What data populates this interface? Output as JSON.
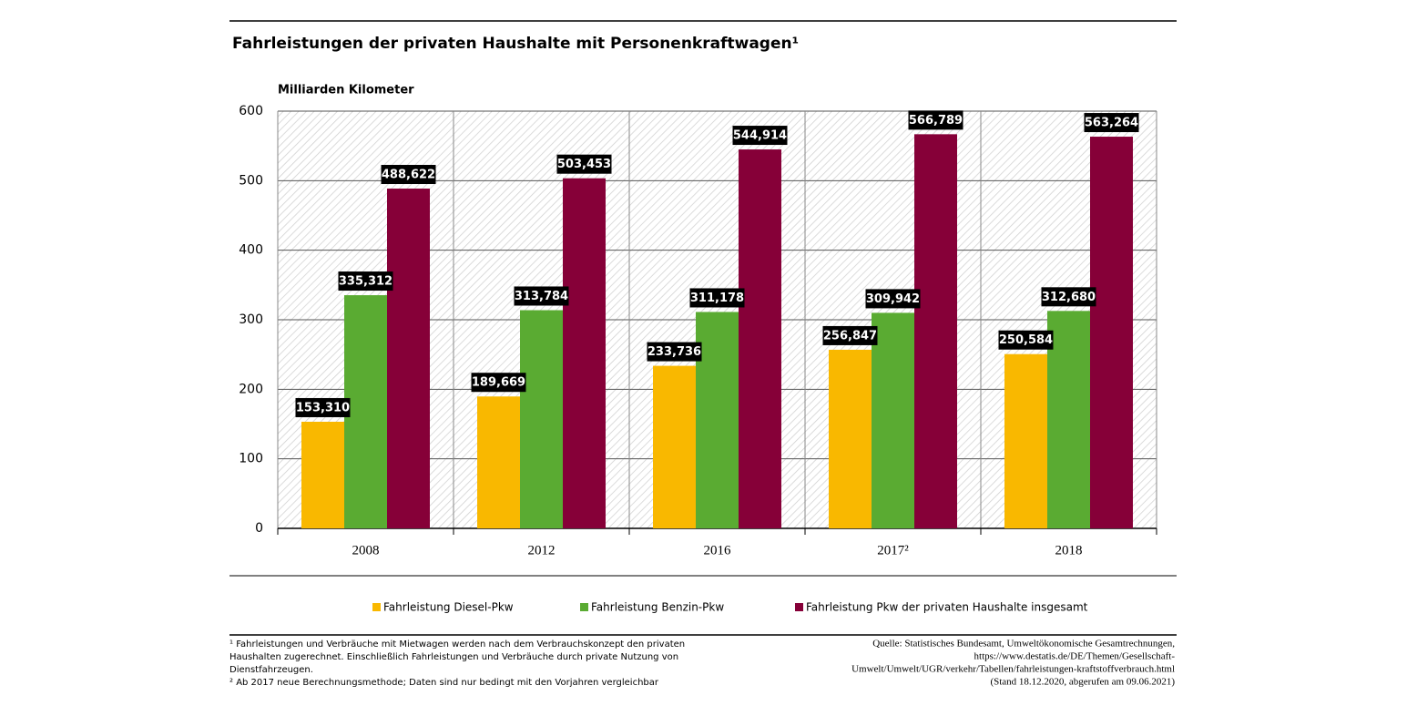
{
  "chart_data": {
    "type": "bar",
    "title": "Fahrleistungen der privaten Haushalte mit Personenkraftwagen¹",
    "y_label": "Milliarden Kilometer",
    "categories": [
      "2008",
      "2012",
      "2016",
      "2017²",
      "2018"
    ],
    "series": [
      {
        "name": "Fahrleistung Diesel-Pkw",
        "color": "#f9b800",
        "values": [
          153.31,
          189.669,
          233.736,
          256.847,
          250.584
        ],
        "value_labels": [
          "153,310",
          "189,669",
          "233,736",
          "256,847",
          "250,584"
        ]
      },
      {
        "name": "Fahrleistung Benzin-Pkw",
        "color": "#5aab32",
        "values": [
          335.312,
          313.784,
          311.178,
          309.942,
          312.68
        ],
        "value_labels": [
          "335,312",
          "313,784",
          "311,178",
          "309,942",
          "312,680"
        ]
      },
      {
        "name": "Fahrleistung Pkw der privaten Haushalte insgesamt",
        "color": "#860038",
        "values": [
          488.622,
          503.453,
          544.914,
          566.789,
          563.264
        ],
        "value_labels": [
          "488,622",
          "503,453",
          "544,914",
          "566,789",
          "563,264"
        ]
      }
    ],
    "ylim": [
      0,
      600
    ],
    "yticks": [
      0,
      100,
      200,
      300,
      400,
      500,
      600
    ],
    "grid": true,
    "footnotes": [
      "¹ Fahrleistungen und Verbräuche mit Mietwagen werden nach dem Verbrauchskonzept den privaten",
      "Haushalten zugerechnet. Einschließlich Fahrleistungen und Verbräuche durch private Nutzung von",
      "Dienstfahrzeugen.",
      "² Ab 2017 neue Berechnungsmethode; Daten sind nur bedingt mit den Vorjahren vergleichbar"
    ],
    "source": [
      "Quelle: Statistisches Bundesamt, Umweltökonomische Gesamtrechnungen,",
      "https://www.destatis.de/DE/Themen/Gesellschaft-",
      "Umwelt/Umwelt/UGR/verkehr/Tabellen/fahrleistungen-kraftstoffverbrauch.html",
      "(Stand 18.12.2020, abgerufen am 09.06.2021)"
    ]
  }
}
